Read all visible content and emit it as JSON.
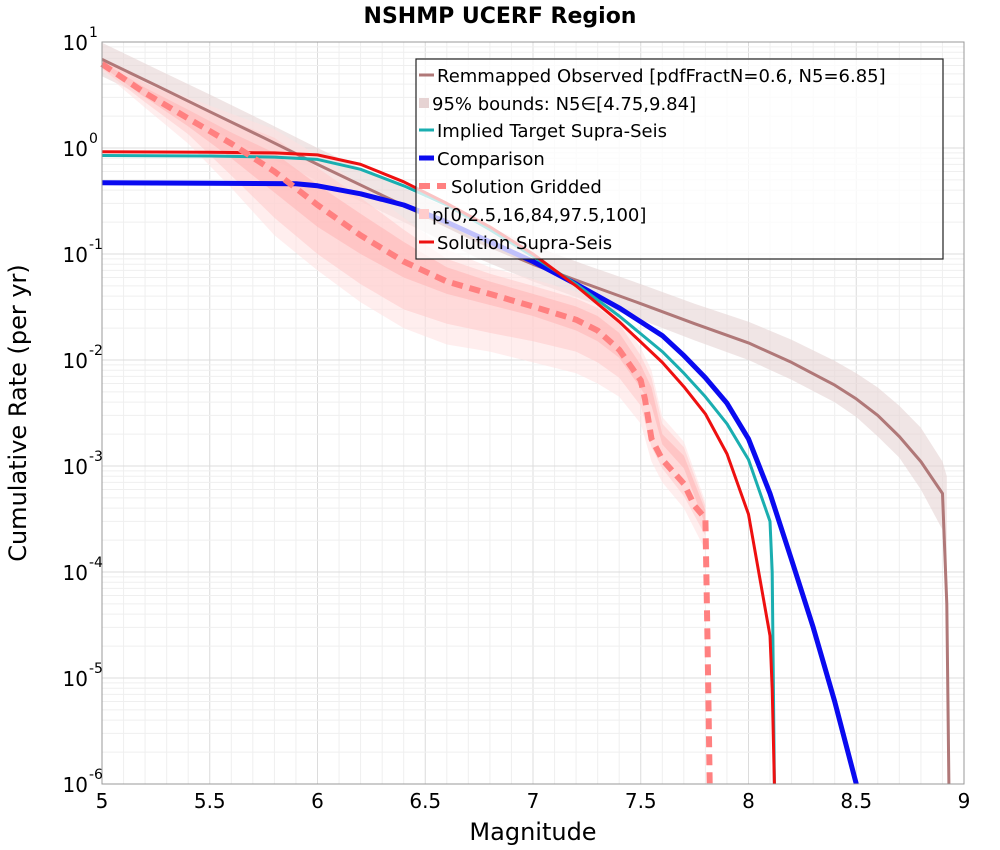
{
  "chart_data": {
    "type": "line",
    "title": "NSHMP UCERF Region",
    "xlabel": "Magnitude",
    "ylabel": "Cumulative Rate (per yr)",
    "xlim": [
      5,
      9
    ],
    "ylim": [
      1e-06,
      10
    ],
    "yscale": "log",
    "grid": true,
    "legend_position": "top-right",
    "x_ticks": [
      "5",
      "5.5",
      "6",
      "6.5",
      "7",
      "7.5",
      "8",
      "8.5",
      "9"
    ],
    "y_tick_exponents": [
      "-6",
      "-5",
      "-4",
      "-3",
      "-2",
      "-1",
      "0",
      "1"
    ],
    "y_tick_base": "10",
    "legend": [
      {
        "label": "Remmapped Observed [pdfFractN=0.6, N5=6.85]",
        "color": "#b07878",
        "style": "line"
      },
      {
        "label": "95% bounds: N5∈[4.75,9.84]",
        "color": "#e6d3d3",
        "style": "band"
      },
      {
        "label": "Implied Target Supra-Seis",
        "color": "#1aaeb0",
        "style": "line"
      },
      {
        "label": "Comparison",
        "color": "#0a0af0",
        "style": "thick-line"
      },
      {
        "label": "Solution Gridded",
        "color": "#ff8080",
        "style": "dashed"
      },
      {
        "label": "p[0,2.5,16,84,97.5,100]",
        "color": "#ffcccc",
        "style": "band"
      },
      {
        "label": "Solution Supra-Seis",
        "color": "#ee1010",
        "style": "line"
      }
    ],
    "series": [
      {
        "name": "Remmapped Observed [pdfFractN=0.6, N5=6.85]",
        "color": "#b07878",
        "x": [
          5,
          5.25,
          5.5,
          5.75,
          6,
          6.25,
          6.5,
          6.75,
          7,
          7.25,
          7.5,
          7.75,
          8,
          8.2,
          8.4,
          8.5,
          8.6,
          8.7,
          8.8,
          8.9,
          8.92,
          8.93
        ],
        "y": [
          6.85,
          3.9,
          2.2,
          1.25,
          0.7,
          0.4,
          0.23,
          0.13,
          0.08,
          0.052,
          0.034,
          0.022,
          0.0145,
          0.0095,
          0.0058,
          0.0043,
          0.003,
          0.0019,
          0.0011,
          0.00055,
          5e-05,
          1e-06
        ]
      },
      {
        "name": "95% bounds: N5∈[4.75,9.84]",
        "color": "#e6d3d3",
        "x": [
          5,
          5.25,
          5.5,
          5.75,
          6,
          6.25,
          6.5,
          6.75,
          7,
          7.25,
          7.5,
          7.75,
          8,
          8.2,
          8.4,
          8.5,
          8.6,
          8.7,
          8.8,
          8.9,
          8.92
        ],
        "y_low": [
          4.75,
          2.7,
          1.5,
          0.86,
          0.49,
          0.28,
          0.16,
          0.09,
          0.055,
          0.036,
          0.024,
          0.0153,
          0.01,
          0.0065,
          0.004,
          0.0029,
          0.0019,
          0.0012,
          0.0006,
          0.00025,
          3e-05
        ],
        "y_high": [
          9.84,
          5.6,
          3.2,
          1.8,
          1.0,
          0.58,
          0.34,
          0.2,
          0.12,
          0.078,
          0.052,
          0.034,
          0.023,
          0.0155,
          0.0098,
          0.0075,
          0.0055,
          0.0037,
          0.0023,
          0.0011,
          0.0008
        ]
      },
      {
        "name": "Implied Target Supra-Seis",
        "color": "#1aaeb0",
        "x": [
          5,
          5.5,
          5.8,
          6,
          6.2,
          6.4,
          6.6,
          6.8,
          7,
          7.2,
          7.4,
          7.6,
          7.7,
          7.8,
          7.9,
          8,
          8.1,
          8.11,
          8.12
        ],
        "y": [
          0.85,
          0.84,
          0.82,
          0.78,
          0.63,
          0.44,
          0.29,
          0.17,
          0.095,
          0.052,
          0.026,
          0.012,
          0.0075,
          0.0045,
          0.0025,
          0.00115,
          0.0003,
          0.0001,
          1e-06
        ]
      },
      {
        "name": "Comparison",
        "color": "#0a0af0",
        "x": [
          5,
          5.5,
          5.9,
          6,
          6.2,
          6.4,
          6.6,
          6.8,
          7,
          7.2,
          7.4,
          7.6,
          7.7,
          7.8,
          7.9,
          8,
          8.1,
          8.2,
          8.3,
          8.4,
          8.5
        ],
        "y": [
          0.47,
          0.465,
          0.46,
          0.44,
          0.37,
          0.29,
          0.2,
          0.13,
          0.085,
          0.052,
          0.031,
          0.017,
          0.011,
          0.0068,
          0.0039,
          0.0018,
          0.00055,
          0.00013,
          3e-05,
          6e-06,
          1e-06
        ]
      },
      {
        "name": "Solution Gridded",
        "color": "#ff8080",
        "x": [
          5,
          5.2,
          5.4,
          5.6,
          5.8,
          6,
          6.2,
          6.4,
          6.6,
          6.8,
          7,
          7.2,
          7.3,
          7.4,
          7.5,
          7.52,
          7.55,
          7.6,
          7.7,
          7.75,
          7.8,
          7.81,
          7.82
        ],
        "y": [
          6.2,
          3.3,
          1.9,
          1.1,
          0.6,
          0.29,
          0.15,
          0.085,
          0.055,
          0.042,
          0.032,
          0.024,
          0.019,
          0.0125,
          0.0064,
          0.0042,
          0.0018,
          0.00115,
          0.00068,
          0.00042,
          0.00032,
          2e-05,
          1e-06
        ]
      },
      {
        "name": "p[0,2.5,16,84,97.5,100]",
        "color": "#ffcccc",
        "x": [
          5,
          5.2,
          5.4,
          5.6,
          5.8,
          6,
          6.2,
          6.4,
          6.6,
          6.8,
          7,
          7.2,
          7.3,
          7.4,
          7.5,
          7.55,
          7.6,
          7.7,
          7.8
        ],
        "p0": [
          5.3,
          2.4,
          1.1,
          0.42,
          0.15,
          0.07,
          0.035,
          0.02,
          0.014,
          0.012,
          0.0095,
          0.0075,
          0.006,
          0.0045,
          0.0025,
          0.0011,
          0.0007,
          0.0004,
          0.00016
        ],
        "p2_5": [
          5.6,
          2.7,
          1.35,
          0.55,
          0.22,
          0.1,
          0.052,
          0.03,
          0.022,
          0.018,
          0.015,
          0.012,
          0.0095,
          0.0068,
          0.0037,
          0.0015,
          0.00095,
          0.00052,
          0.00022
        ],
        "p16": [
          5.9,
          3.0,
          1.6,
          0.8,
          0.38,
          0.18,
          0.1,
          0.06,
          0.042,
          0.033,
          0.026,
          0.019,
          0.015,
          0.0105,
          0.0054,
          0.0037,
          0.0016,
          0.00095,
          0.00028
        ],
        "p84": [
          6.5,
          3.7,
          2.3,
          1.4,
          0.9,
          0.45,
          0.24,
          0.13,
          0.075,
          0.055,
          0.042,
          0.032,
          0.026,
          0.018,
          0.009,
          0.0055,
          0.002,
          0.00125,
          0.00038
        ],
        "p97_5": [
          6.8,
          4.1,
          2.7,
          1.8,
          1.25,
          0.65,
          0.34,
          0.17,
          0.09,
          0.065,
          0.05,
          0.038,
          0.031,
          0.022,
          0.011,
          0.0068,
          0.0025,
          0.0015,
          0.00042
        ],
        "p100": [
          7.0,
          4.3,
          3.0,
          2.1,
          1.5,
          0.85,
          0.45,
          0.22,
          0.11,
          0.075,
          0.058,
          0.044,
          0.036,
          0.026,
          0.013,
          0.008,
          0.0029,
          0.0017,
          0.00046
        ]
      },
      {
        "name": "Solution Supra-Seis",
        "color": "#ee1010",
        "x": [
          5,
          5.5,
          5.8,
          6,
          6.2,
          6.4,
          6.6,
          6.8,
          7,
          7.2,
          7.4,
          7.6,
          7.7,
          7.8,
          7.9,
          8,
          8.1,
          8.11,
          8.12
        ],
        "y": [
          0.92,
          0.91,
          0.9,
          0.86,
          0.7,
          0.48,
          0.3,
          0.18,
          0.1,
          0.05,
          0.023,
          0.0095,
          0.0056,
          0.0031,
          0.0013,
          0.00035,
          2.5e-05,
          8e-06,
          1e-06
        ]
      }
    ]
  }
}
